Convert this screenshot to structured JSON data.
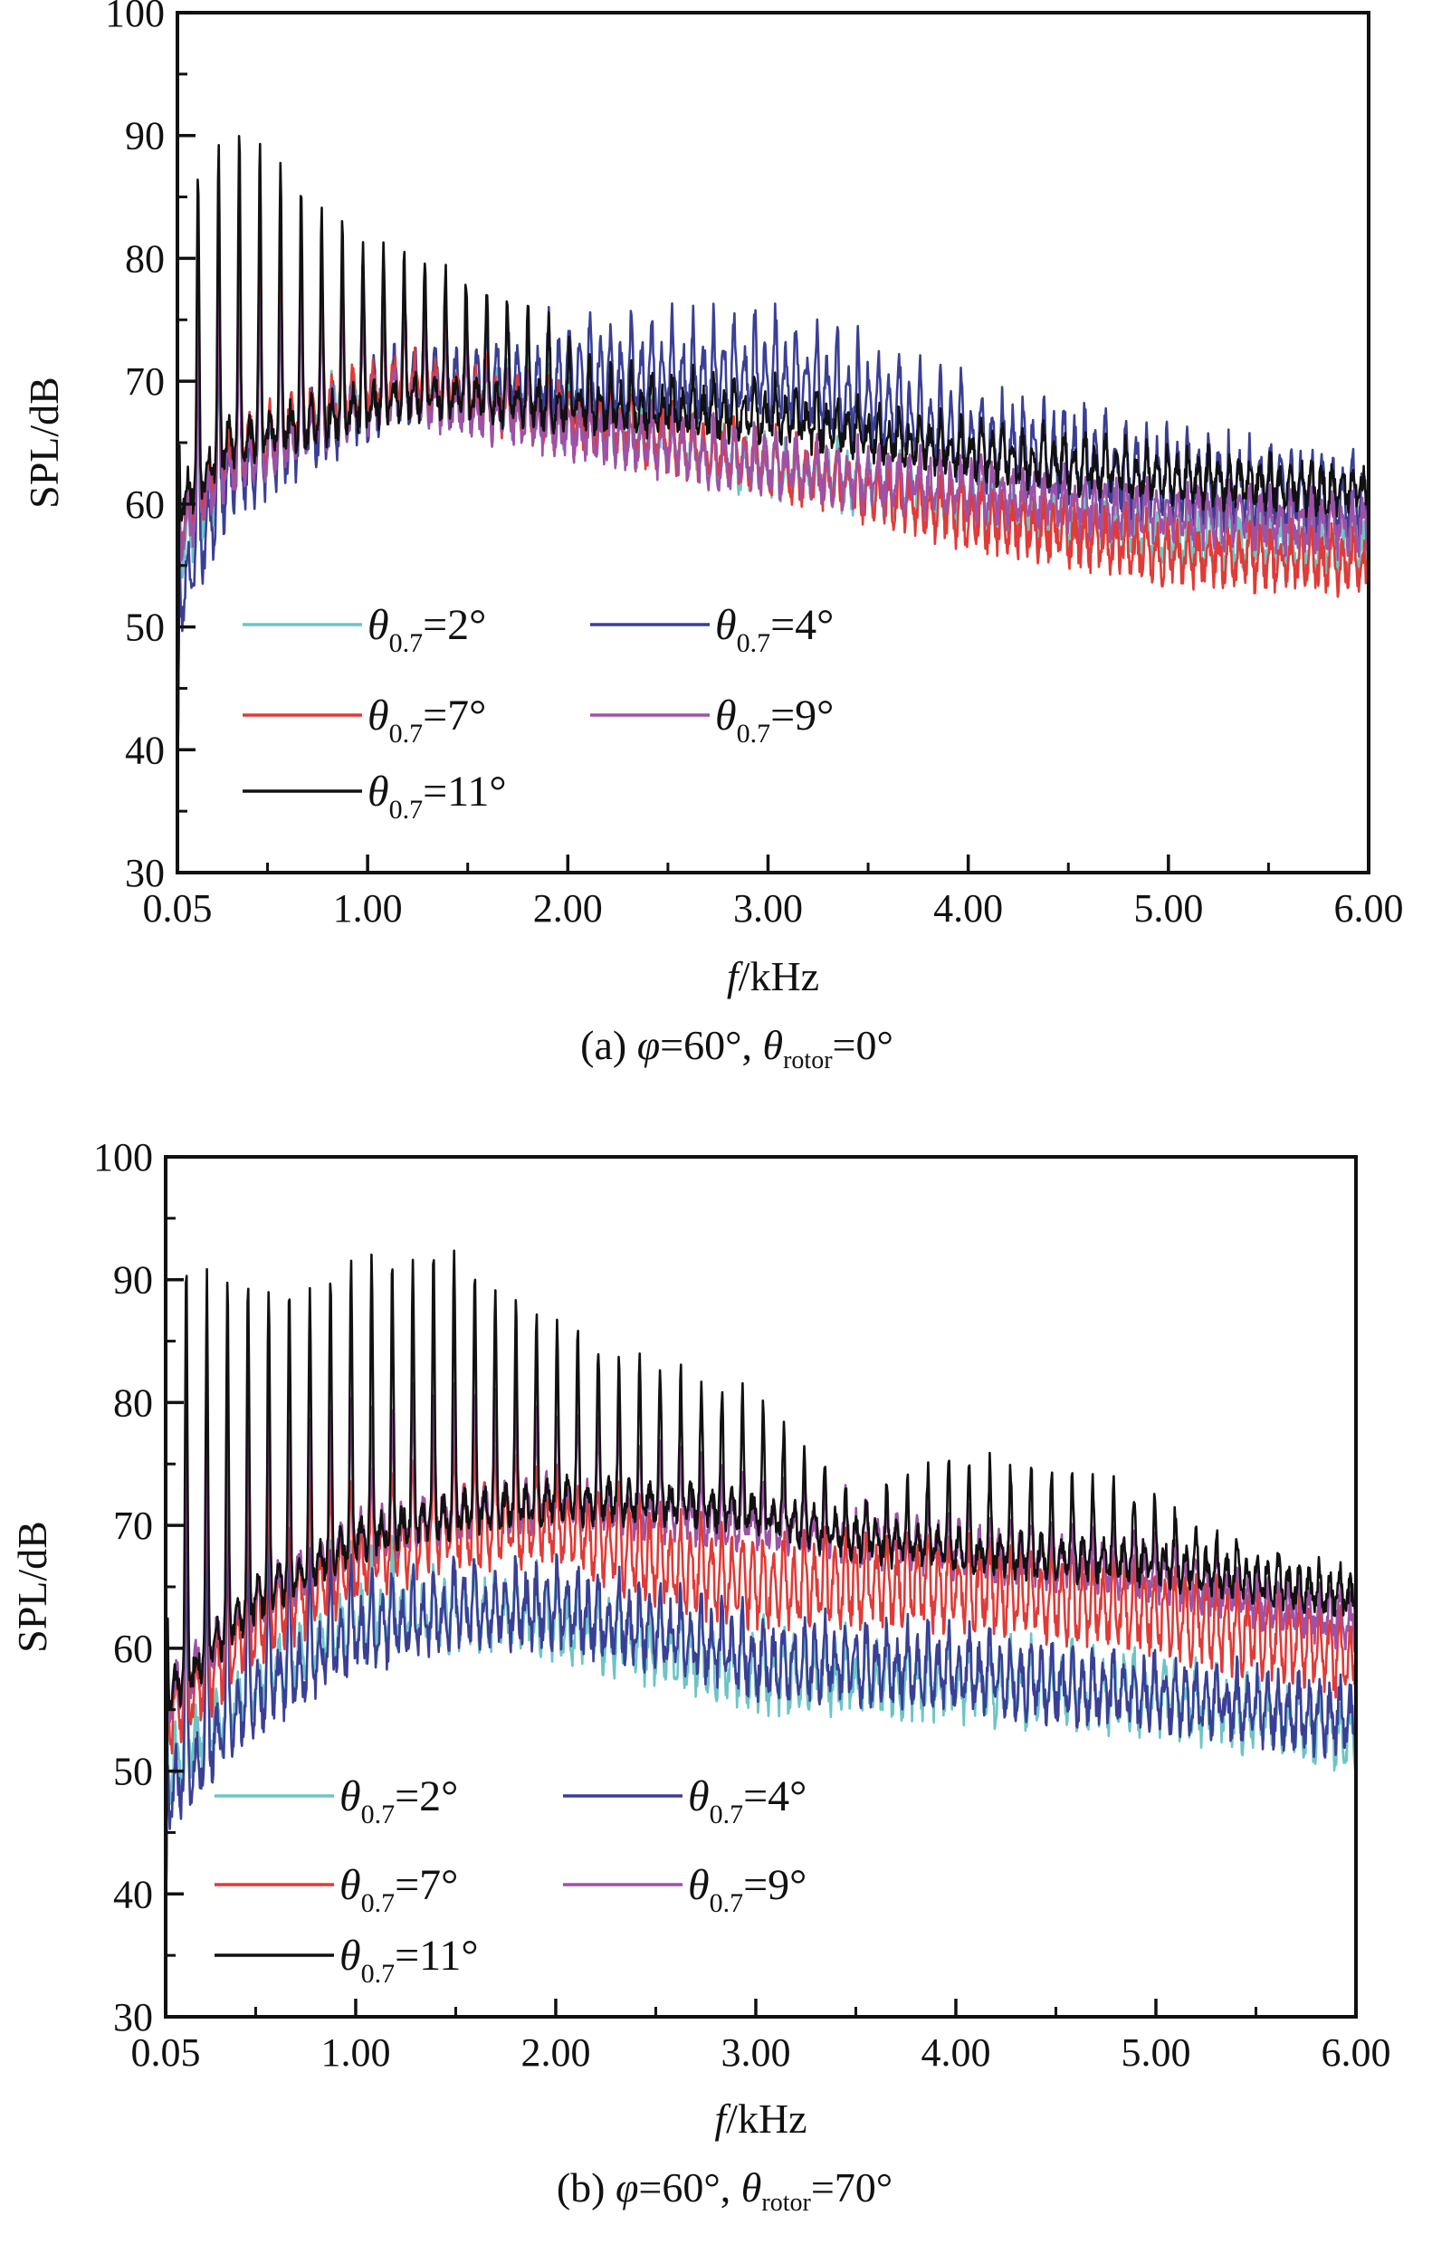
{
  "chart_data": [
    {
      "type": "line",
      "caption_prefix": "(a) ",
      "caption_phi": "φ",
      "caption_phi_val": "=60°, ",
      "caption_theta": "θ",
      "caption_theta_sub": "rotor",
      "caption_theta_val": "=0°",
      "xlabel_italic": "f",
      "xlabel_rest": "/kHz",
      "ylabel": "SPL/dB",
      "xlim": [
        0.05,
        6.0
      ],
      "ylim": [
        30,
        100
      ],
      "xticks": [
        0.05,
        1.0,
        2.0,
        3.0,
        4.0,
        5.0,
        6.0
      ],
      "xtick_labels": [
        "0.05",
        "1.00",
        "2.00",
        "3.00",
        "4.00",
        "5.00",
        "6.00"
      ],
      "yticks": [
        30,
        40,
        50,
        60,
        70,
        80,
        90,
        100
      ],
      "ytick_labels": [
        "30",
        "40",
        "50",
        "60",
        "70",
        "80",
        "90",
        "100"
      ],
      "harmonic_spacing_khz": 0.103,
      "legend_symbol": "θ",
      "legend_sub": "0.7",
      "series": [
        {
          "name": "=2°",
          "color": "#6cc5c5",
          "seed": 11,
          "base": [
            [
              0.05,
              56
            ],
            [
              0.3,
              63
            ],
            [
              0.8,
              68
            ],
            [
              1.2,
              70
            ],
            [
              2.0,
              67
            ],
            [
              3.0,
              63
            ],
            [
              4.0,
              60
            ],
            [
              5.0,
              57
            ],
            [
              6.0,
              56
            ]
          ],
          "peak": [
            [
              0.05,
              16
            ],
            [
              0.5,
              12
            ],
            [
              1.0,
              8
            ],
            [
              1.5,
              3
            ],
            [
              2.0,
              1
            ],
            [
              6.0,
              0.5
            ]
          ],
          "noise": 1.4,
          "ripple": 1.6
        },
        {
          "name": "=4°",
          "color": "#3a3f96",
          "seed": 23,
          "base": [
            [
              0.05,
              52
            ],
            [
              0.3,
              62
            ],
            [
              0.8,
              67
            ],
            [
              1.2,
              70
            ],
            [
              2.0,
              70
            ],
            [
              3.0,
              70
            ],
            [
              3.5,
              68
            ],
            [
              4.0,
              65
            ],
            [
              5.0,
              62
            ],
            [
              6.0,
              60
            ]
          ],
          "peak": [
            [
              0.05,
              18
            ],
            [
              0.5,
              12
            ],
            [
              1.0,
              9
            ],
            [
              1.5,
              3
            ],
            [
              2.0,
              2
            ],
            [
              3.0,
              3
            ],
            [
              6.0,
              0.6
            ]
          ],
          "noise": 1.3,
          "ripple": 2.6
        },
        {
          "name": "=7°",
          "color": "#e23a36",
          "seed": 37,
          "base": [
            [
              0.05,
              58
            ],
            [
              0.3,
              64
            ],
            [
              0.8,
              68
            ],
            [
              1.2,
              70
            ],
            [
              2.0,
              67
            ],
            [
              3.0,
              63
            ],
            [
              4.0,
              59
            ],
            [
              5.0,
              56
            ],
            [
              6.0,
              55
            ]
          ],
          "peak": [
            [
              0.05,
              22
            ],
            [
              0.5,
              14
            ],
            [
              1.0,
              7
            ],
            [
              1.5,
              2
            ],
            [
              2.0,
              1
            ],
            [
              6.0,
              0.5
            ]
          ],
          "noise": 1.4,
          "ripple": 1.6
        },
        {
          "name": "=9°",
          "color": "#9d52a6",
          "seed": 41,
          "base": [
            [
              0.05,
              57
            ],
            [
              0.3,
              63
            ],
            [
              0.8,
              67
            ],
            [
              1.2,
              69
            ],
            [
              2.0,
              66
            ],
            [
              3.0,
              63
            ],
            [
              4.0,
              61
            ],
            [
              5.0,
              59
            ],
            [
              6.0,
              58
            ]
          ],
          "peak": [
            [
              0.05,
              16
            ],
            [
              0.5,
              11
            ],
            [
              1.0,
              7
            ],
            [
              1.5,
              3
            ],
            [
              2.0,
              1
            ],
            [
              6.0,
              0.5
            ]
          ],
          "noise": 1.3,
          "ripple": 1.5
        },
        {
          "name": "=11°",
          "color": "#111111",
          "seed": 53,
          "base": [
            [
              0.05,
              60
            ],
            [
              0.3,
              65
            ],
            [
              0.8,
              67
            ],
            [
              1.2,
              69
            ],
            [
              2.0,
              68
            ],
            [
              3.0,
              67
            ],
            [
              4.0,
              64
            ],
            [
              5.0,
              62
            ],
            [
              6.0,
              61
            ]
          ],
          "peak": [
            [
              0.05,
              24
            ],
            [
              0.4,
              24
            ],
            [
              0.8,
              15
            ],
            [
              1.2,
              10
            ],
            [
              1.8,
              7
            ],
            [
              2.2,
              2
            ],
            [
              6.0,
              0.6
            ]
          ],
          "noise": 1.1,
          "ripple": 1.3
        }
      ]
    },
    {
      "type": "line",
      "caption_prefix": "(b) ",
      "caption_phi": "φ",
      "caption_phi_val": "=60°, ",
      "caption_theta": "θ",
      "caption_theta_sub": "rotor",
      "caption_theta_val": "=70°",
      "xlabel_italic": "f",
      "xlabel_rest": "/kHz",
      "ylabel": "SPL/dB",
      "xlim": [
        0.05,
        6.0
      ],
      "ylim": [
        30,
        100
      ],
      "xticks": [
        0.05,
        1.0,
        2.0,
        3.0,
        4.0,
        5.0,
        6.0
      ],
      "xtick_labels": [
        "0.05",
        "1.00",
        "2.00",
        "3.00",
        "4.00",
        "5.00",
        "6.00"
      ],
      "yticks": [
        30,
        40,
        50,
        60,
        70,
        80,
        90,
        100
      ],
      "ytick_labels": [
        "30",
        "40",
        "50",
        "60",
        "70",
        "80",
        "90",
        "100"
      ],
      "harmonic_spacing_khz": 0.103,
      "legend_symbol": "θ",
      "legend_sub": "0.7",
      "series": [
        {
          "name": "=2°",
          "color": "#6cc5c5",
          "seed": 61,
          "base": [
            [
              0.05,
              50
            ],
            [
              0.5,
              57
            ],
            [
              1.0,
              62
            ],
            [
              1.5,
              63
            ],
            [
              2.0,
              62
            ],
            [
              2.5,
              60
            ],
            [
              3.0,
              58
            ],
            [
              4.0,
              57
            ],
            [
              5.0,
              56
            ],
            [
              6.0,
              53
            ]
          ],
          "peak": [
            [
              0.05,
              22
            ],
            [
              0.5,
              14
            ],
            [
              1.0,
              5
            ],
            [
              1.5,
              2
            ],
            [
              2.0,
              2
            ],
            [
              6.0,
              0.6
            ]
          ],
          "noise": 1.5,
          "ripple": 2.0
        },
        {
          "name": "=4°",
          "color": "#3a3f96",
          "seed": 67,
          "base": [
            [
              0.05,
              48
            ],
            [
              0.5,
              56
            ],
            [
              1.0,
              61
            ],
            [
              1.5,
              63
            ],
            [
              2.0,
              63
            ],
            [
              2.5,
              61
            ],
            [
              3.0,
              59
            ],
            [
              4.0,
              58
            ],
            [
              5.0,
              56
            ],
            [
              6.0,
              54
            ]
          ],
          "peak": [
            [
              0.05,
              20
            ],
            [
              0.5,
              12
            ],
            [
              1.0,
              4
            ],
            [
              1.5,
              2
            ],
            [
              2.0,
              2
            ],
            [
              6.0,
              0.6
            ]
          ],
          "noise": 1.4,
          "ripple": 2.0
        },
        {
          "name": "=7°",
          "color": "#e23a36",
          "seed": 71,
          "base": [
            [
              0.05,
              54
            ],
            [
              0.5,
              62
            ],
            [
              1.0,
              67
            ],
            [
              1.5,
              70
            ],
            [
              2.0,
              70
            ],
            [
              2.5,
              67
            ],
            [
              3.0,
              65
            ],
            [
              3.5,
              65
            ],
            [
              4.0,
              65
            ],
            [
              4.5,
              64
            ],
            [
              5.0,
              63
            ],
            [
              6.0,
              59
            ]
          ],
          "peak": [
            [
              0.05,
              26
            ],
            [
              0.5,
              12
            ],
            [
              1.0,
              5
            ],
            [
              1.5,
              4
            ],
            [
              2.0,
              2
            ],
            [
              6.0,
              0.6
            ]
          ],
          "noise": 1.3,
          "ripple": 2.6
        },
        {
          "name": "=9°",
          "color": "#9d52a6",
          "seed": 79,
          "base": [
            [
              0.05,
              56
            ],
            [
              0.5,
              64
            ],
            [
              1.0,
              69
            ],
            [
              1.5,
              71
            ],
            [
              2.0,
              72
            ],
            [
              2.5,
              71
            ],
            [
              3.0,
              70
            ],
            [
              3.5,
              69
            ],
            [
              4.0,
              68
            ],
            [
              5.0,
              66
            ],
            [
              6.0,
              62
            ]
          ],
          "peak": [
            [
              0.05,
              20
            ],
            [
              0.5,
              14
            ],
            [
              1.0,
              9
            ],
            [
              1.5,
              9
            ],
            [
              2.0,
              6
            ],
            [
              3.0,
              2
            ],
            [
              6.0,
              0.6
            ]
          ],
          "noise": 1.2,
          "ripple": 1.4
        },
        {
          "name": "=11°",
          "color": "#111111",
          "seed": 83,
          "base": [
            [
              0.05,
              56
            ],
            [
              0.5,
              64
            ],
            [
              1.0,
              69
            ],
            [
              1.5,
              71
            ],
            [
              2.0,
              72
            ],
            [
              2.5,
              72
            ],
            [
              3.0,
              71
            ],
            [
              3.5,
              69
            ],
            [
              4.0,
              68
            ],
            [
              5.0,
              67
            ],
            [
              6.0,
              64
            ]
          ],
          "peak": [
            [
              0.05,
              36
            ],
            [
              0.3,
              28
            ],
            [
              0.7,
              22
            ],
            [
              1.0,
              22
            ],
            [
              1.5,
              20
            ],
            [
              2.0,
              13
            ],
            [
              2.5,
              10
            ],
            [
              3.0,
              8
            ],
            [
              3.5,
              2
            ],
            [
              4.0,
              6
            ],
            [
              4.5,
              6
            ],
            [
              5.0,
              4
            ],
            [
              5.6,
              1
            ],
            [
              6.0,
              0.8
            ]
          ],
          "noise": 1.0,
          "ripple": 1.2
        }
      ]
    }
  ]
}
